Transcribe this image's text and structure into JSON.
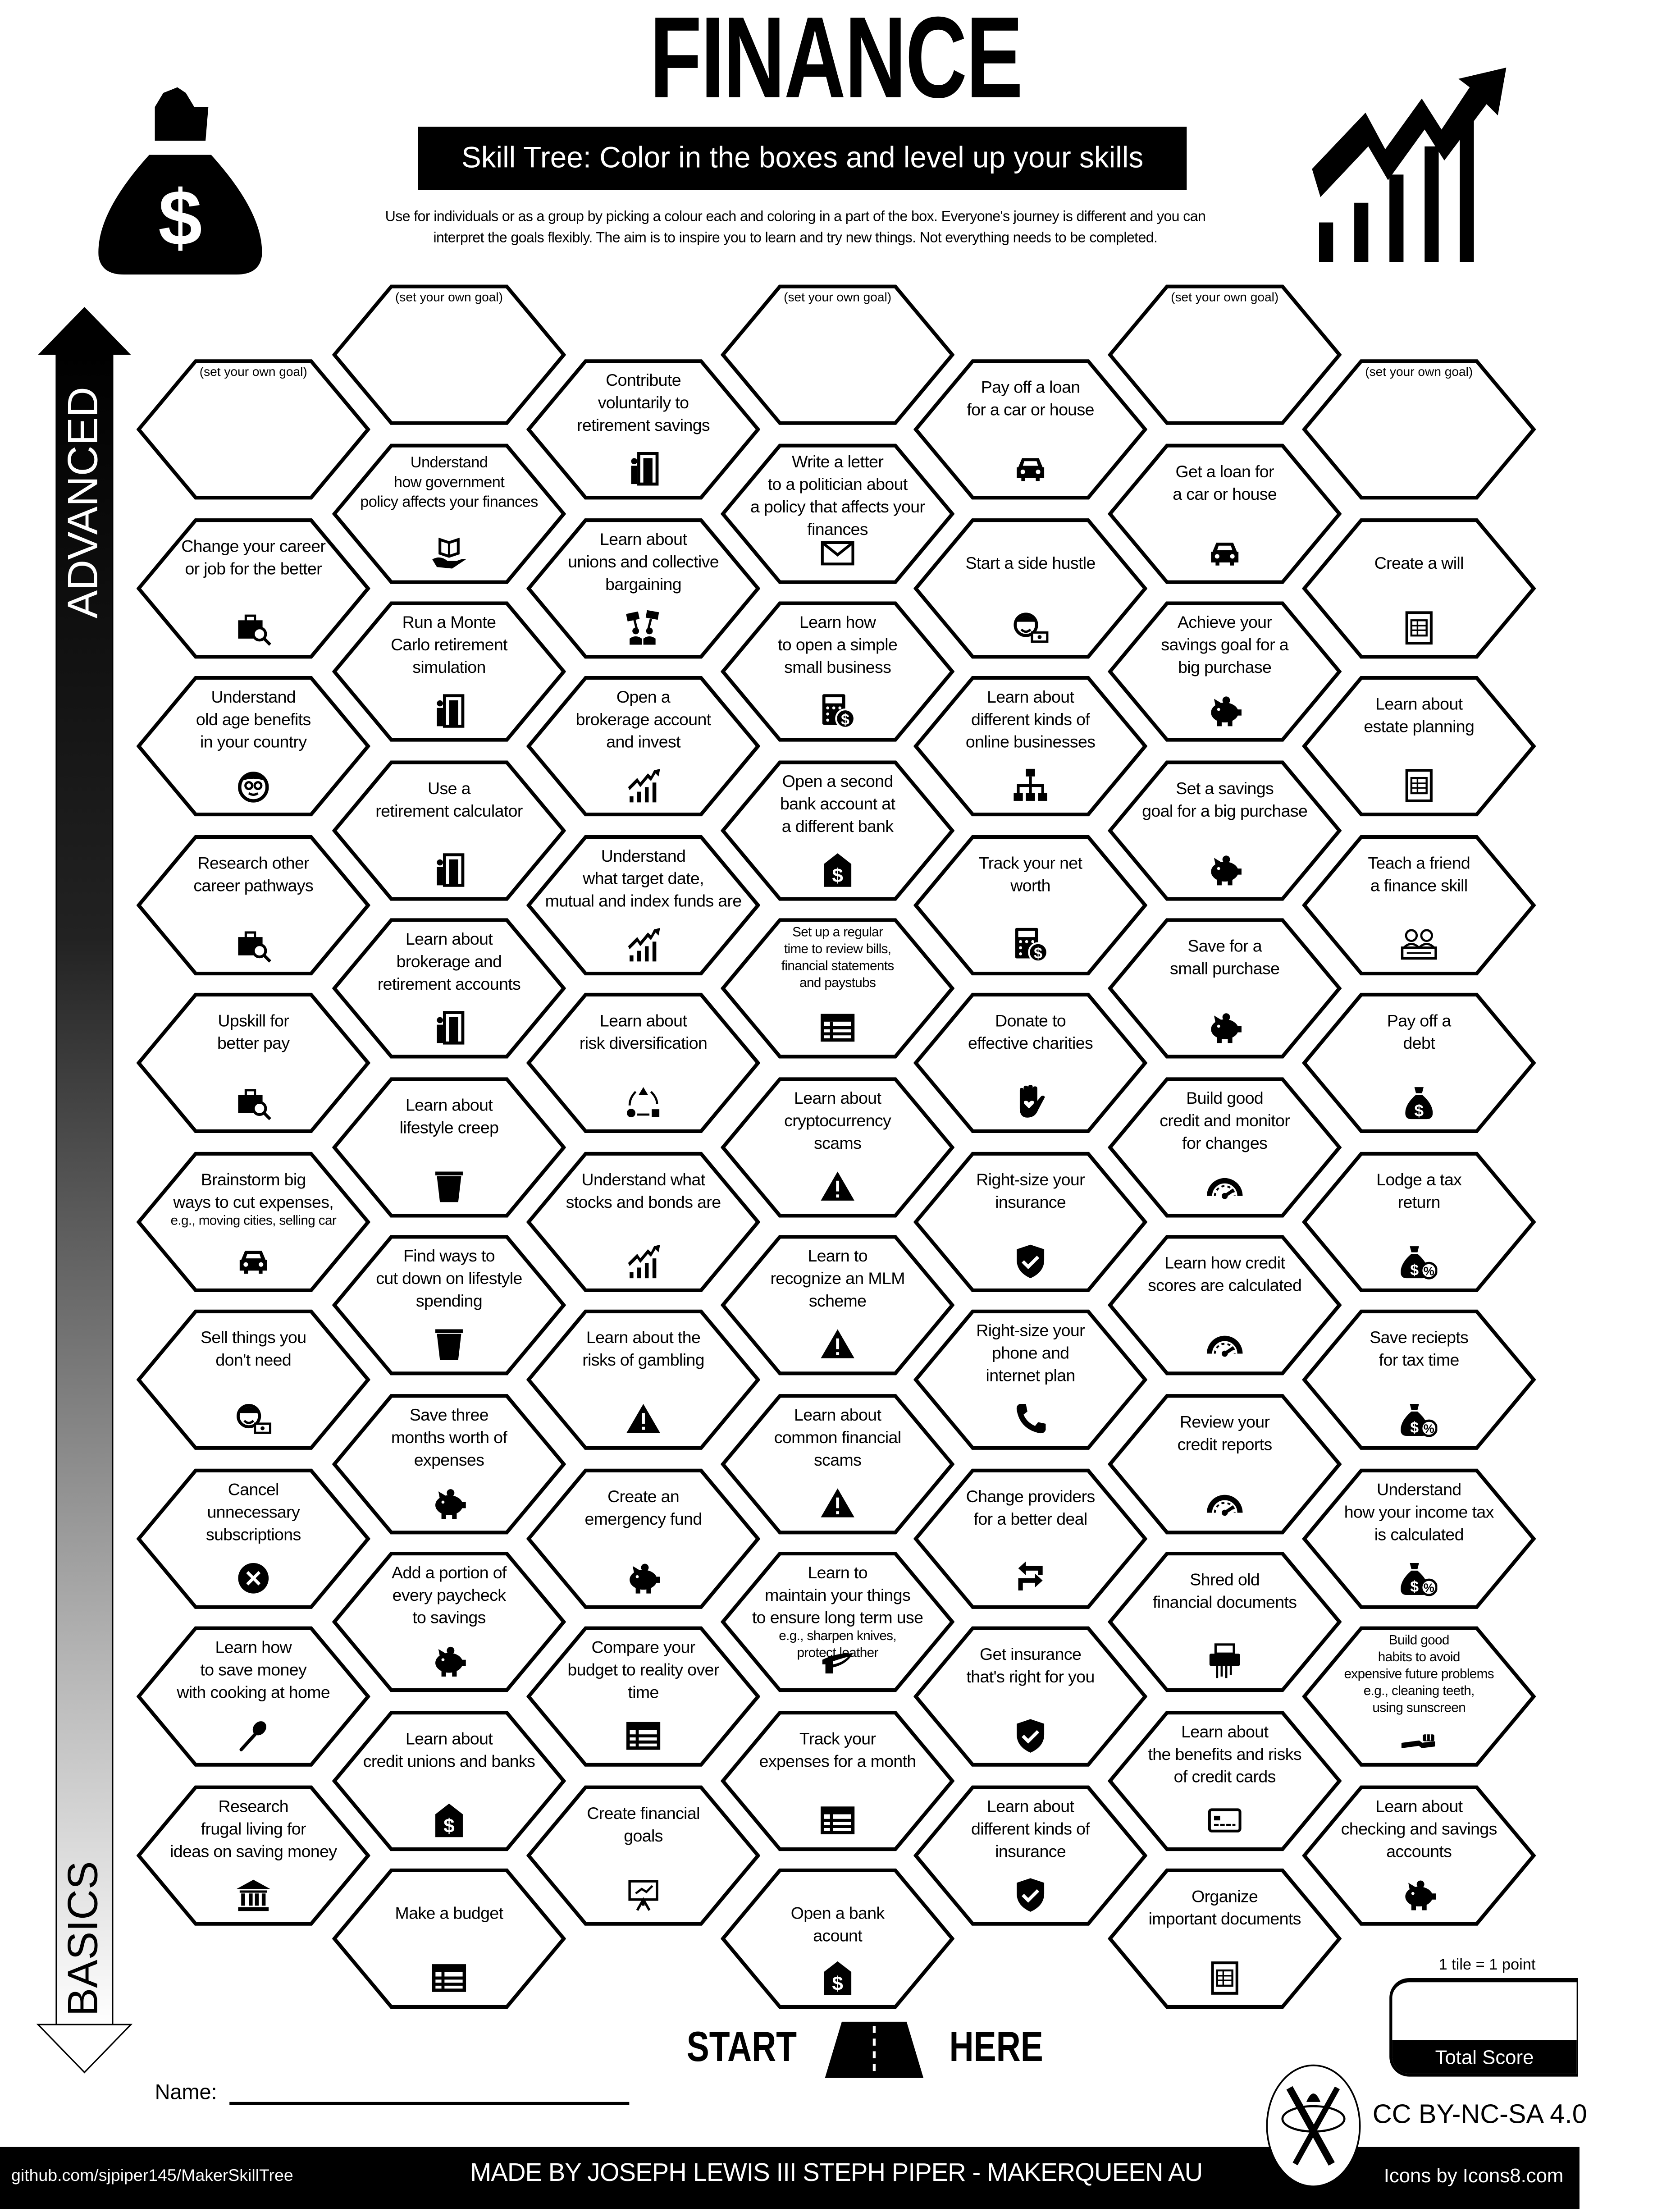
{
  "header": {
    "title": "FINANCE",
    "subtitle": "Skill Tree:  Color in the boxes and level up your skills",
    "description": [
      "Use for individuals or as a group by picking a colour each and coloring in a part of the box.  Everyone's journey is different and you can",
      "interpret the goals flexibly.  The aim is to inspire you to learn and try new things. Not everything needs to be completed."
    ],
    "left_icon": "money-bag-icon",
    "right_icon": "growth-chart-icon"
  },
  "axis": {
    "top_label": "ADVANCED",
    "bottom_label": "BASICS"
  },
  "columns": [
    {
      "tiles": [
        {
          "goal": "(set your own goal)"
        },
        {
          "lines": [
            "Change your career",
            "or job for the better"
          ],
          "icon": "briefcase-search"
        },
        {
          "lines": [
            "Understand",
            "old age benefits",
            "in your country"
          ],
          "icon": "elderly-face"
        },
        {
          "lines": [
            "Research other",
            "career pathways"
          ],
          "icon": "briefcase-search"
        },
        {
          "lines": [
            "Upskill for",
            "better pay"
          ],
          "icon": "briefcase-search"
        },
        {
          "lines": [
            "Brainstorm big",
            "ways to cut expenses,"
          ],
          "note": [
            "e.g., moving cities, selling car"
          ],
          "icon": "car"
        },
        {
          "lines": [
            "Sell things you",
            "don't need"
          ],
          "icon": "person-money"
        },
        {
          "lines": [
            "Cancel",
            "unnecessary",
            "subscriptions"
          ],
          "icon": "cancel"
        },
        {
          "lines": [
            "Learn how",
            "to save money",
            "with cooking at home"
          ],
          "icon": "spoon"
        },
        {
          "lines": [
            "Research",
            "frugal living for",
            "ideas on saving money"
          ],
          "icon": "bank"
        }
      ]
    },
    {
      "tiles": [
        {
          "goal": "(set your own goal)"
        },
        {
          "lines": [
            "Understand",
            "how government",
            "policy affects your finances"
          ],
          "icon": "hand-book",
          "small": true
        },
        {
          "lines": [
            "Run a Monte",
            "Carlo retirement",
            "simulation"
          ],
          "icon": "retirement"
        },
        {
          "lines": [
            "Use a",
            "retirement calculator"
          ],
          "icon": "retirement"
        },
        {
          "lines": [
            "Learn about",
            "brokerage and",
            "retirement accounts"
          ],
          "icon": "retirement"
        },
        {
          "lines": [
            "Learn about",
            "lifestyle creep"
          ],
          "icon": "trash"
        },
        {
          "lines": [
            "Find ways to",
            "cut down on lifestyle",
            "spending"
          ],
          "icon": "trash"
        },
        {
          "lines": [
            "Save three",
            "months worth of",
            "expenses"
          ],
          "icon": "piggy-bank"
        },
        {
          "lines": [
            "Add a portion of",
            "every paycheck",
            "to savings"
          ],
          "icon": "piggy-bank"
        },
        {
          "lines": [
            "Learn about",
            "credit unions and banks"
          ],
          "icon": "bank-house"
        },
        {
          "lines": [
            "Make a budget"
          ],
          "icon": "table",
          "mid": true
        }
      ]
    },
    {
      "tiles": [
        {
          "lines": [
            "Contribute",
            "voluntarily to",
            "retirement savings"
          ],
          "icon": "retirement"
        },
        {
          "lines": [
            "Learn about",
            "unions and collective",
            "bargaining"
          ],
          "icon": "protest"
        },
        {
          "lines": [
            "Open a",
            "brokerage account",
            "and invest"
          ],
          "icon": "chart-up"
        },
        {
          "lines": [
            "Understand",
            "what target date,",
            "mutual and index funds are"
          ],
          "icon": "chart-up"
        },
        {
          "lines": [
            "Learn about",
            "risk diversification"
          ],
          "icon": "diversification"
        },
        {
          "lines": [
            "Understand what",
            "stocks and bonds are"
          ],
          "icon": "chart-up"
        },
        {
          "lines": [
            "Learn about the",
            "risks of gambling"
          ],
          "icon": "warning"
        },
        {
          "lines": [
            "Create an",
            "emergency fund"
          ],
          "icon": "piggy-bank"
        },
        {
          "lines": [
            "Compare your",
            "budget to reality over",
            "time"
          ],
          "icon": "table"
        },
        {
          "lines": [
            "Create financial",
            "goals"
          ],
          "icon": "easel"
        }
      ]
    },
    {
      "tiles": [
        {
          "goal": "(set your own goal)"
        },
        {
          "lines": [
            "Write a letter",
            "to a politician about",
            "a policy that affects your",
            "finances"
          ],
          "icon": "envelope"
        },
        {
          "lines": [
            "Learn how",
            "to open a simple",
            "small business"
          ],
          "icon": "calculator-dollar"
        },
        {
          "lines": [
            "Open a second",
            "bank account at",
            "a different bank"
          ],
          "icon": "bank-house"
        },
        {
          "lines": [],
          "note": [
            "Set up a regular",
            "time to review bills,",
            "financial statements",
            "and paystubs"
          ],
          "icon": "table"
        },
        {
          "lines": [
            "Learn about",
            "cryptocurrency",
            "scams"
          ],
          "icon": "warning"
        },
        {
          "lines": [
            "Learn to",
            "recognize an MLM",
            "scheme"
          ],
          "icon": "warning"
        },
        {
          "lines": [
            "Learn about",
            "common financial",
            "scams"
          ],
          "icon": "warning"
        },
        {
          "lines": [
            "Learn to",
            "maintain your things",
            "to ensure long term use"
          ],
          "note": [
            "e.g., sharpen knives,",
            "protect leather"
          ],
          "icon": "knife"
        },
        {
          "lines": [
            "Track your",
            "expenses for a month"
          ],
          "icon": "table"
        },
        {
          "lines": [
            "Open a bank",
            "acount"
          ],
          "icon": "bank-house",
          "mid": true
        }
      ]
    },
    {
      "tiles": [
        {
          "lines": [
            "Pay off a loan",
            "for a car or house"
          ],
          "icon": "car"
        },
        {
          "lines": [
            "Start a side hustle"
          ],
          "icon": "person-money",
          "mid": true
        },
        {
          "lines": [
            "Learn about",
            "different kinds of",
            "online businesses"
          ],
          "icon": "org-chart"
        },
        {
          "lines": [
            "Track your net",
            "worth"
          ],
          "icon": "calculator-dollar"
        },
        {
          "lines": [
            "Donate to",
            "effective charities"
          ],
          "icon": "hand-heart"
        },
        {
          "lines": [
            "Right-size your",
            "insurance"
          ],
          "icon": "shield-check"
        },
        {
          "lines": [
            "Right-size your",
            "phone and",
            "internet plan"
          ],
          "icon": "phone"
        },
        {
          "lines": [
            "Change providers",
            "for a better deal"
          ],
          "icon": "swap"
        },
        {
          "lines": [
            "Get insurance",
            "that's right for you"
          ],
          "icon": "shield-check"
        },
        {
          "lines": [
            "Learn about",
            "different kinds of",
            "insurance"
          ],
          "icon": "shield-check"
        }
      ]
    },
    {
      "tiles": [
        {
          "goal": "(set your own goal)"
        },
        {
          "lines": [
            "Get a loan for",
            "a car or house"
          ],
          "icon": "car"
        },
        {
          "lines": [
            "Achieve your",
            "savings goal for a",
            "big purchase"
          ],
          "icon": "piggy-bank"
        },
        {
          "lines": [
            "Set a savings",
            "goal for a big purchase"
          ],
          "icon": "piggy-bank"
        },
        {
          "lines": [
            "Save for a",
            "small purchase"
          ],
          "icon": "piggy-bank"
        },
        {
          "lines": [
            "Build good",
            "credit and monitor",
            "for changes"
          ],
          "icon": "gauge"
        },
        {
          "lines": [
            "Learn how credit",
            "scores are calculated"
          ],
          "icon": "gauge"
        },
        {
          "lines": [
            "Review your",
            "credit reports"
          ],
          "icon": "gauge"
        },
        {
          "lines": [
            "Shred old",
            "financial documents"
          ],
          "icon": "shredder"
        },
        {
          "lines": [
            "Learn about",
            "the benefits and risks",
            "of credit cards"
          ],
          "icon": "credit-card"
        },
        {
          "lines": [
            "Organize",
            "important documents"
          ],
          "icon": "document"
        }
      ]
    },
    {
      "tiles": [
        {
          "goal": "(set your own goal)"
        },
        {
          "lines": [
            "Create a will"
          ],
          "icon": "document",
          "mid": true
        },
        {
          "lines": [
            "Learn about",
            "estate planning"
          ],
          "icon": "document"
        },
        {
          "lines": [
            "Teach a friend",
            "a finance skill"
          ],
          "icon": "teacher"
        },
        {
          "lines": [
            "Pay off a",
            "debt"
          ],
          "icon": "money-bag"
        },
        {
          "lines": [
            "Lodge a tax",
            "return"
          ],
          "icon": "tax-bag"
        },
        {
          "lines": [
            "Save reciepts",
            "for tax time"
          ],
          "icon": "tax-bag"
        },
        {
          "lines": [
            "Understand",
            "how your income tax",
            "is calculated"
          ],
          "icon": "tax-bag"
        },
        {
          "lines": [],
          "note": [
            "Build good",
            "habits to avoid",
            "expensive future problems",
            "e.g., cleaning teeth,",
            "using sunscreen"
          ],
          "icon": "toothbrush"
        },
        {
          "lines": [
            "Learn about",
            "checking and savings",
            "accounts"
          ],
          "icon": "piggy-bank"
        }
      ]
    }
  ],
  "start": {
    "left": "START",
    "right": "HERE"
  },
  "name_label": "Name:",
  "score": {
    "note": "1 tile = 1 point",
    "label": "Total Score"
  },
  "footer": {
    "github": "github.com/sjpiper145/MakerSkillTree",
    "made_by": "MADE BY  JOSEPH LEWIS III STEPH PIPER  -  MAKERQUEEN AU",
    "license": "CC BY-NC-SA 4.0",
    "icons_credit": "Icons by Icons8.com"
  }
}
